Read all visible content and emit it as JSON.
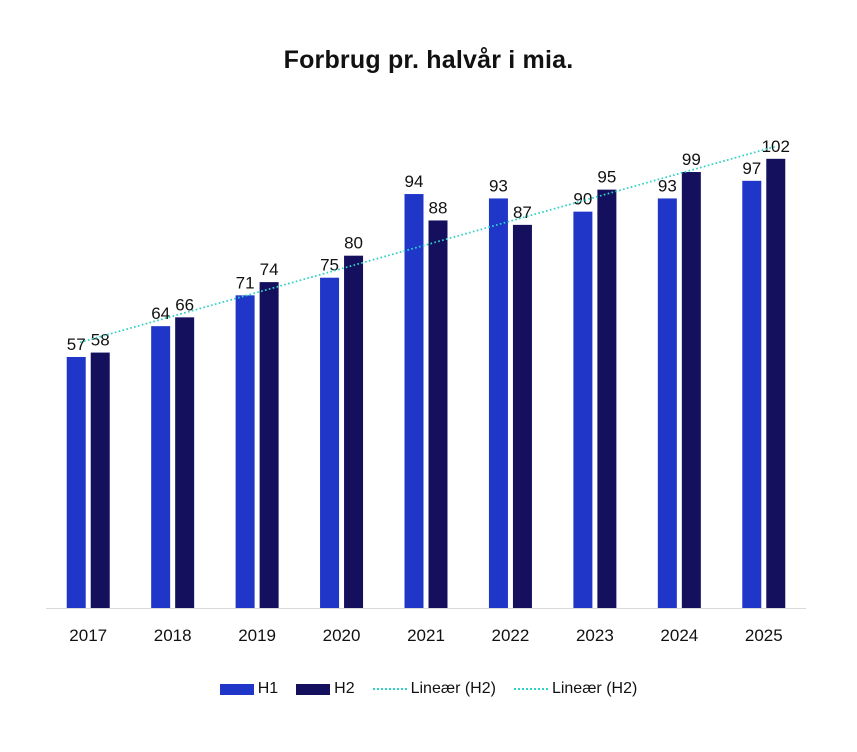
{
  "chart_data": {
    "type": "bar",
    "title": "Forbrug pr. halvår i mia.",
    "categories": [
      "2017",
      "2018",
      "2019",
      "2020",
      "2021",
      "2022",
      "2023",
      "2024",
      "2025"
    ],
    "series": [
      {
        "name": "H1",
        "values": [
          57,
          64,
          71,
          75,
          94,
          93,
          90,
          93,
          97
        ],
        "color": "#1f36c9"
      },
      {
        "name": "H2",
        "values": [
          58,
          66,
          74,
          80,
          88,
          87,
          95,
          99,
          102
        ],
        "color": "#14105e"
      }
    ],
    "trendlines": [
      {
        "name": "Lineær (H2)",
        "of_series": "H2",
        "color": "#2fd3c6",
        "style": "dotted"
      },
      {
        "name": "Lineær (H2)",
        "of_series": "H2",
        "color": "#2fd3c6",
        "style": "dotted"
      }
    ],
    "ylim": [
      0,
      104
    ],
    "grid": false,
    "legend_position": "bottom",
    "xlabel": "",
    "ylabel": ""
  }
}
